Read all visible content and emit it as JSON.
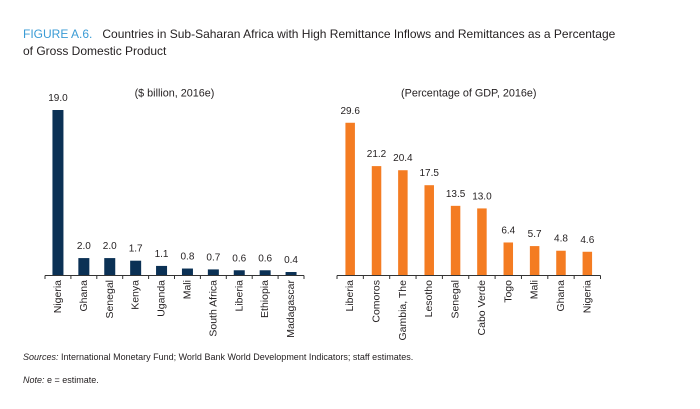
{
  "figure": {
    "label": "FIGURE A.6.",
    "title_lines": [
      "Countries in Sub-Saharan Africa with High Remittance Inflows and Remittances as a Percentage",
      "of Gross Domestic Product"
    ]
  },
  "chart_data": [
    {
      "type": "bar",
      "title": "",
      "subtitle": "($ billion, 2016e)",
      "xlabel": "",
      "ylabel": "",
      "categories": [
        "Nigeria",
        "Ghana",
        "Senegal",
        "Kenya",
        "Uganda",
        "Mali",
        "South Africa",
        "Liberia",
        "Ethiopia",
        "Madagascar"
      ],
      "values": [
        19.0,
        2.0,
        2.0,
        1.7,
        1.1,
        0.8,
        0.7,
        0.6,
        0.6,
        0.4
      ],
      "value_labels": [
        "19.0",
        "2.0",
        "2.0",
        "1.7",
        "1.1",
        "0.8",
        "0.7",
        "0.6",
        "0.6",
        "0.4"
      ],
      "ylim": [
        0,
        20
      ],
      "grid": false,
      "legend": "none",
      "color": "#0b3155"
    },
    {
      "type": "bar",
      "title": "",
      "subtitle": "(Percentage of GDP, 2016e)",
      "xlabel": "",
      "ylabel": "",
      "categories": [
        "Liberia",
        "Comoros",
        "Gambia, The",
        "Lesotho",
        "Senegal",
        "Cabo Verde",
        "Togo",
        "Mali",
        "Ghana",
        "Nigeria"
      ],
      "values": [
        29.6,
        21.2,
        20.4,
        17.5,
        13.5,
        13.0,
        6.4,
        5.7,
        4.8,
        4.6
      ],
      "value_labels": [
        "29.6",
        "21.2",
        "20.4",
        "17.5",
        "13.5",
        "13.0",
        "6.4",
        "5.7",
        "4.8",
        "4.6"
      ],
      "ylim": [
        0,
        30
      ],
      "grid": false,
      "legend": "none",
      "color": "#f47c22"
    }
  ],
  "footnotes": {
    "sources_label": "Sources:",
    "sources_text": " International Monetary Fund; World Bank World Development Indicators; staff estimates.",
    "note_label": "Note:",
    "note_text": " e = estimate."
  },
  "colors": {
    "figure_label": "#3a9bd5",
    "text": "#231f20",
    "axis": "#333333"
  }
}
